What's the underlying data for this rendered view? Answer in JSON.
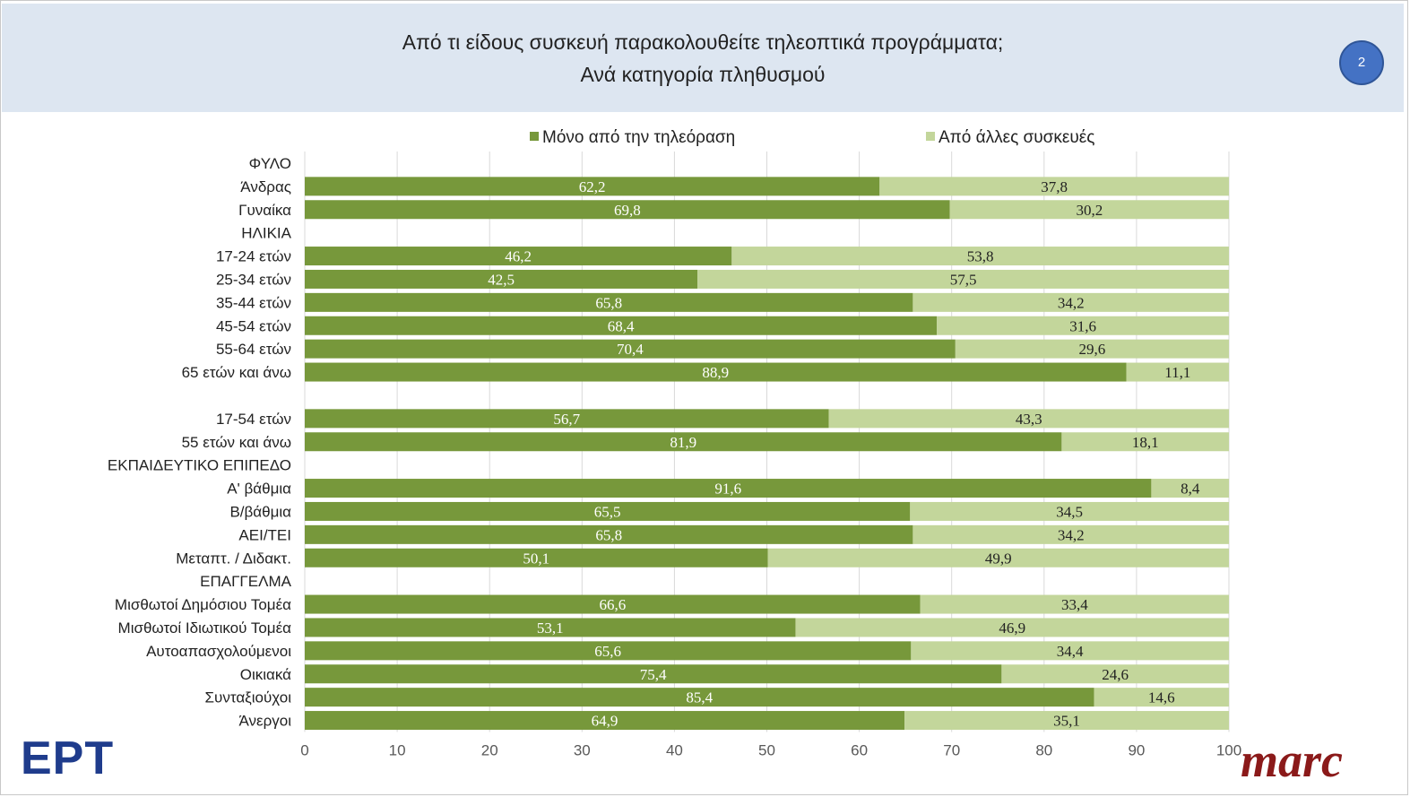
{
  "header": {
    "title_line1": "Από τι είδους συσκευή παρακολουθείτε τηλεοπτικά προγράμματα;",
    "title_line2": "Ανά κατηγορία πληθυσμού",
    "page_number": "2"
  },
  "logos": {
    "left": "ΕΡΤ",
    "right": "marc"
  },
  "colors": {
    "dark_green": "#77983b",
    "light_green": "#c3d69b",
    "grid": "#d9d9d9"
  },
  "chart_data": {
    "type": "bar",
    "orientation": "horizontal",
    "stacked": true,
    "title": "Από τι είδους συσκευή παρακολουθείτε τηλεοπτικά προγράμματα; Ανά κατηγορία πληθυσμού",
    "xlim": [
      0,
      100
    ],
    "x_ticks": [
      "0",
      "10",
      "20",
      "30",
      "40",
      "50",
      "60",
      "70",
      "80",
      "90",
      "100"
    ],
    "grid": true,
    "legend_position": "top",
    "series": [
      {
        "name": "Μόνο από την τηλεόραση",
        "color": "#77983b"
      },
      {
        "name": "Από άλλες συσκευές",
        "color": "#c3d69b"
      }
    ],
    "rows": [
      {
        "label": "ΦΥΛΟ",
        "header": true
      },
      {
        "label": "Άνδρας",
        "values": [
          62.2,
          37.8
        ],
        "labels": [
          "62,2",
          "37,8"
        ]
      },
      {
        "label": "Γυναίκα",
        "values": [
          69.8,
          30.2
        ],
        "labels": [
          "69,8",
          "30,2"
        ]
      },
      {
        "label": "ΗΛΙΚΙΑ",
        "header": true
      },
      {
        "label": "17-24 ετών",
        "values": [
          46.2,
          53.8
        ],
        "labels": [
          "46,2",
          "53,8"
        ]
      },
      {
        "label": "25-34 ετών",
        "values": [
          42.5,
          57.5
        ],
        "labels": [
          "42,5",
          "57,5"
        ]
      },
      {
        "label": "35-44 ετών",
        "values": [
          65.8,
          34.2
        ],
        "labels": [
          "65,8",
          "34,2"
        ]
      },
      {
        "label": "45-54 ετών",
        "values": [
          68.4,
          31.6
        ],
        "labels": [
          "68,4",
          "31,6"
        ]
      },
      {
        "label": "55-64 ετών",
        "values": [
          70.4,
          29.6
        ],
        "labels": [
          "70,4",
          "29,6"
        ]
      },
      {
        "label": "65 ετών και άνω",
        "values": [
          88.9,
          11.1
        ],
        "labels": [
          "88,9",
          "11,1"
        ]
      },
      {
        "label": "",
        "header": true
      },
      {
        "label": "17-54 ετών",
        "values": [
          56.7,
          43.3
        ],
        "labels": [
          "56,7",
          "43,3"
        ]
      },
      {
        "label": "55 ετών και άνω",
        "values": [
          81.9,
          18.1
        ],
        "labels": [
          "81,9",
          "18,1"
        ]
      },
      {
        "label": "ΕΚΠΑΙΔΕΥΤΙΚΟ ΕΠΙΠΕΔΟ",
        "header": true
      },
      {
        "label": "Α' βάθμια",
        "values": [
          91.6,
          8.4
        ],
        "labels": [
          "91,6",
          "8,4"
        ]
      },
      {
        "label": "Β/βάθμια",
        "values": [
          65.5,
          34.5
        ],
        "labels": [
          "65,5",
          "34,5"
        ]
      },
      {
        "label": "ΑΕΙ/ΤΕΙ",
        "values": [
          65.8,
          34.2
        ],
        "labels": [
          "65,8",
          "34,2"
        ]
      },
      {
        "label": "Μεταπτ. / Διδακτ.",
        "values": [
          50.1,
          49.9
        ],
        "labels": [
          "50,1",
          "49,9"
        ]
      },
      {
        "label": "ΕΠΑΓΓΕΛΜΑ",
        "header": true
      },
      {
        "label": "Μισθωτοί Δημόσιου Τομέα",
        "values": [
          66.6,
          33.4
        ],
        "labels": [
          "66,6",
          "33,4"
        ]
      },
      {
        "label": "Μισθωτοί Ιδιωτικού Τομέα",
        "values": [
          53.1,
          46.9
        ],
        "labels": [
          "53,1",
          "46,9"
        ]
      },
      {
        "label": "Αυτοαπασχολούμενοι",
        "values": [
          65.6,
          34.4
        ],
        "labels": [
          "65,6",
          "34,4"
        ]
      },
      {
        "label": "Οικιακά",
        "values": [
          75.4,
          24.6
        ],
        "labels": [
          "75,4",
          "24,6"
        ]
      },
      {
        "label": "Συνταξιούχοι",
        "values": [
          85.4,
          14.6
        ],
        "labels": [
          "85,4",
          "14,6"
        ]
      },
      {
        "label": "Άνεργοι",
        "values": [
          64.9,
          35.1
        ],
        "labels": [
          "64,9",
          "35,1"
        ]
      }
    ]
  }
}
